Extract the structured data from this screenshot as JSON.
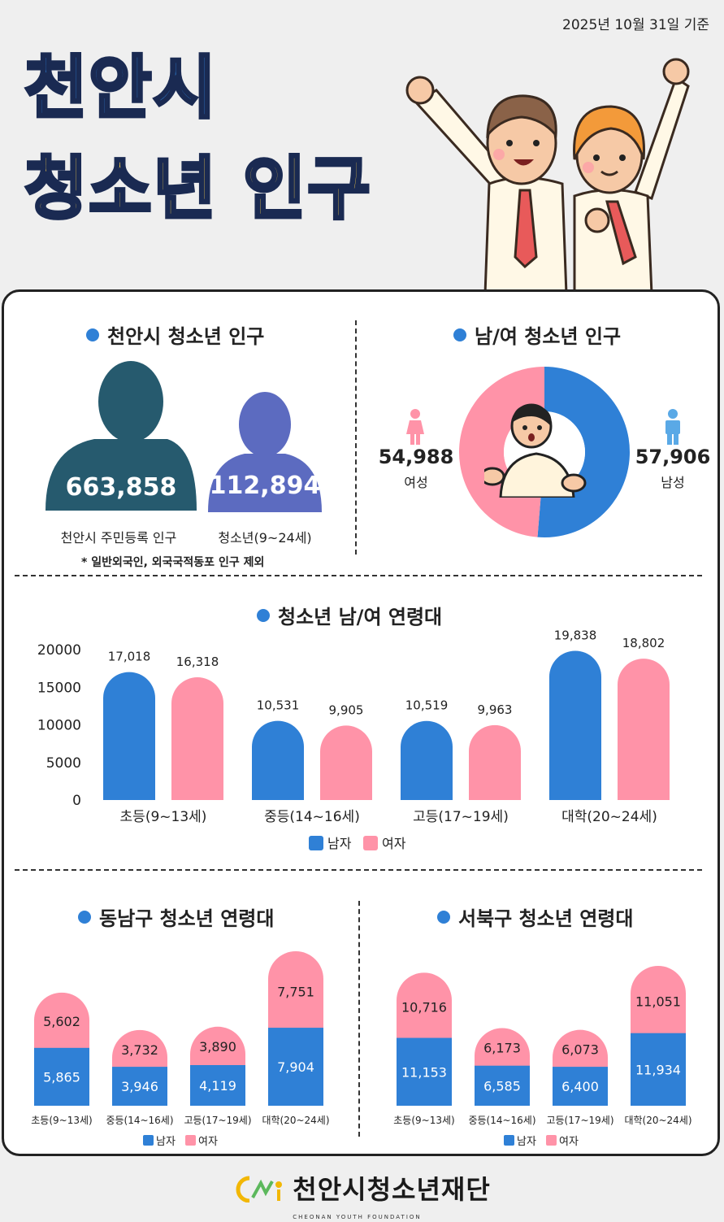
{
  "header": {
    "date": "2025년 10월 31일 기준",
    "title_line1": "천안시",
    "title_line2": "청소년 인구"
  },
  "colors": {
    "male": "#2f80d6",
    "female": "#ff93a8",
    "resident": "#265a6e",
    "youth": "#5c6bc0"
  },
  "population": {
    "title": "천안시 청소년 인구",
    "resident_value": "663,858",
    "resident_label": "천안시 주민등록 인구",
    "youth_value": "112,894",
    "youth_label": "청소년(9~24세)",
    "note": "* 일반외국인, 외국국적동포 인구 제외"
  },
  "gender": {
    "title": "남/여 청소년 인구",
    "female_value": "54,988",
    "female_label": "여성",
    "male_value": "57,906",
    "male_label": "남성",
    "male_icon": "male-person-icon",
    "female_icon": "female-person-icon"
  },
  "legend": {
    "male": "남자",
    "female": "여자"
  },
  "chart_data": [
    {
      "type": "pie",
      "title": "남/여 청소년 인구",
      "categories": [
        "남성",
        "여성"
      ],
      "values": [
        57906,
        54988
      ]
    },
    {
      "type": "bar",
      "title": "청소년 남/여 연령대",
      "categories": [
        "초등(9~13세)",
        "중등(14~16세)",
        "고등(17~19세)",
        "대학(20~24세)"
      ],
      "series": [
        {
          "name": "남자",
          "values": [
            17018,
            10531,
            10519,
            19838
          ],
          "labels": [
            "17,018",
            "10,531",
            "10,519",
            "19,838"
          ]
        },
        {
          "name": "여자",
          "values": [
            16318,
            9905,
            9963,
            18802
          ],
          "labels": [
            "16,318",
            "9,905",
            "9,963",
            "18,802"
          ]
        }
      ],
      "yticks": [
        "20000",
        "15000",
        "10000",
        "5000",
        "0"
      ],
      "ylim": [
        0,
        20000
      ],
      "legend": "bottom"
    },
    {
      "type": "bar",
      "stacked": true,
      "title": "동남구 청소년 연령대",
      "categories": [
        "초등(9~13세)",
        "중등(14~16세)",
        "고등(17~19세)",
        "대학(20~24세)"
      ],
      "series": [
        {
          "name": "남자",
          "values": [
            5865,
            3946,
            4119,
            7904
          ],
          "labels": [
            "5,865",
            "3,946",
            "4,119",
            "7,904"
          ]
        },
        {
          "name": "여자",
          "values": [
            5602,
            3732,
            3890,
            7751
          ],
          "labels": [
            "5,602",
            "3,732",
            "3,890",
            "7,751"
          ]
        }
      ],
      "legend": "bottom"
    },
    {
      "type": "bar",
      "stacked": true,
      "title": "서북구 청소년 연령대",
      "categories": [
        "초등(9~13세)",
        "중등(14~16세)",
        "고등(17~19세)",
        "대학(20~24세)"
      ],
      "series": [
        {
          "name": "남자",
          "values": [
            11153,
            6585,
            6400,
            11934
          ],
          "labels": [
            "11,153",
            "6,585",
            "6,400",
            "11,934"
          ]
        },
        {
          "name": "여자",
          "values": [
            10716,
            6173,
            6073,
            11051
          ],
          "labels": [
            "10,716",
            "6,173",
            "6,073",
            "11,051"
          ]
        }
      ],
      "legend": "bottom"
    }
  ],
  "footer": {
    "org_name": "천안시청소년재단",
    "org_sub": "CHEONAN YOUTH FOUNDATION",
    "logo_icon": "foundation-logo-icon"
  }
}
